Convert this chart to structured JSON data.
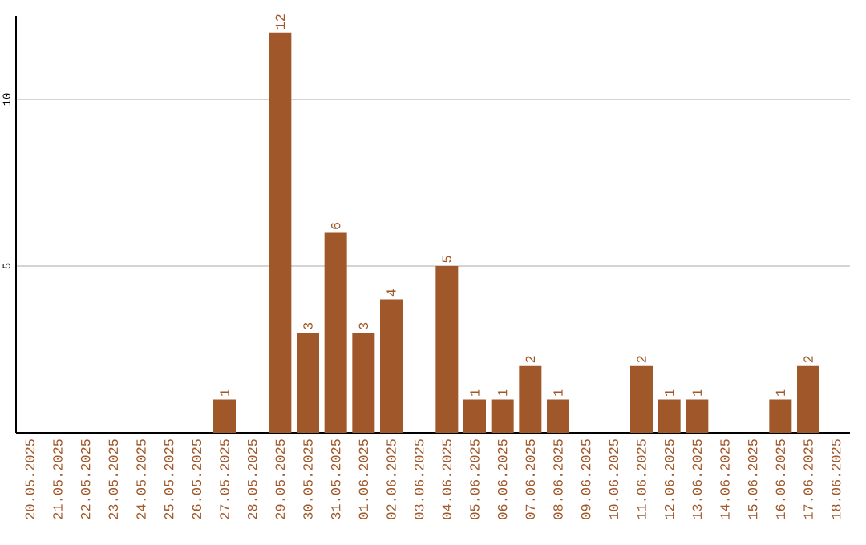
{
  "chart_data": {
    "type": "bar",
    "categories": [
      "20.05.2025",
      "21.05.2025",
      "22.05.2025",
      "23.05.2025",
      "24.05.2025",
      "25.05.2025",
      "26.05.2025",
      "27.05.2025",
      "28.05.2025",
      "29.05.2025",
      "30.05.2025",
      "31.05.2025",
      "01.06.2025",
      "02.06.2025",
      "03.06.2025",
      "04.06.2025",
      "05.06.2025",
      "06.06.2025",
      "07.06.2025",
      "08.06.2025",
      "09.06.2025",
      "10.06.2025",
      "11.06.2025",
      "12.06.2025",
      "13.06.2025",
      "14.06.2025",
      "15.06.2025",
      "16.06.2025",
      "17.06.2025",
      "18.06.2025"
    ],
    "values": [
      0,
      0,
      0,
      0,
      0,
      0,
      0,
      1,
      0,
      12,
      3,
      6,
      3,
      4,
      0,
      5,
      1,
      1,
      2,
      1,
      0,
      0,
      2,
      1,
      1,
      0,
      0,
      1,
      2,
      0
    ],
    "value_labels": [
      null,
      null,
      null,
      null,
      null,
      null,
      null,
      "1",
      null,
      "12",
      "3",
      "6",
      "3",
      "4",
      null,
      "5",
      "1",
      "1",
      "2",
      "1",
      null,
      null,
      "2",
      "1",
      "1",
      null,
      null,
      "1",
      "2",
      null
    ],
    "color": "#a0582a",
    "ylim": [
      0,
      12.5
    ],
    "yticks": [
      5,
      10
    ],
    "grid": "y"
  }
}
